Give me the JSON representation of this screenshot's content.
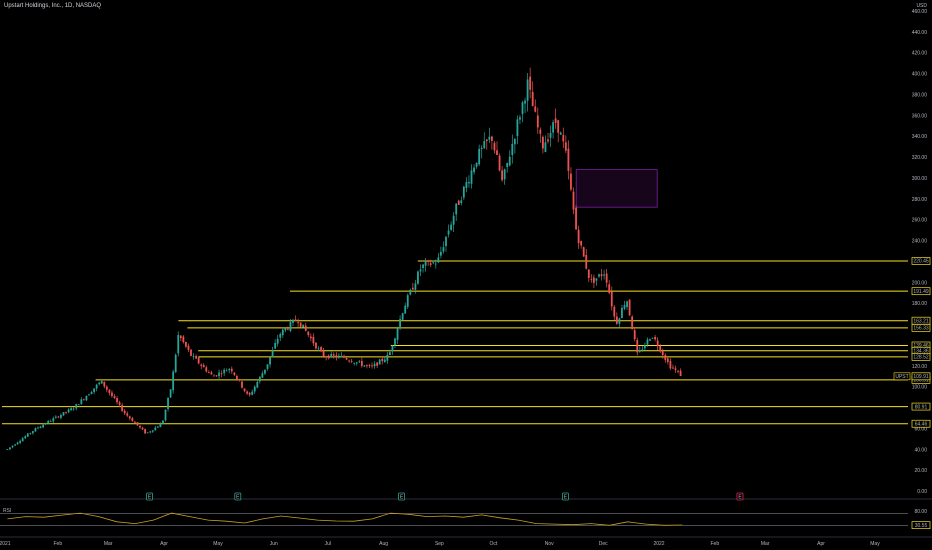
{
  "header": {
    "title": "Upstart Holdings, Inc., 1D, NASDAQ",
    "currency": "USD"
  },
  "rsi_label": "RSI",
  "colors": {
    "up": "#26a69a",
    "down": "#ef5350",
    "level": "#f5e11d",
    "rsi": "#c9a227",
    "zone": "#7b1fa2",
    "background": "#000000"
  },
  "chart_data": [
    {
      "type": "candlestick",
      "title": "Upstart Holdings, Inc., 1D, NASDAQ",
      "ylabel": "USD",
      "ylim": [
        0,
        460
      ],
      "y_ticks": [
        0,
        20,
        40,
        60,
        80,
        100,
        120,
        140,
        160,
        180,
        200,
        220,
        240,
        260,
        280,
        300,
        320,
        340,
        360,
        380,
        400,
        420,
        440,
        460
      ],
      "x_ticks": [
        "2021",
        "Feb",
        "Mar",
        "Apr",
        "May",
        "Jun",
        "Jul",
        "Aug",
        "Sep",
        "Oct",
        "Nov",
        "Dec",
        "2022",
        "Feb",
        "Mar",
        "Apr",
        "May"
      ],
      "price_path": [
        {
          "date": "2021-01-04",
          "price": 40
        },
        {
          "date": "2021-01-20",
          "price": 60
        },
        {
          "date": "2021-02-10",
          "price": 80
        },
        {
          "date": "2021-02-25",
          "price": 105
        },
        {
          "date": "2021-03-10",
          "price": 75
        },
        {
          "date": "2021-03-22",
          "price": 55
        },
        {
          "date": "2021-03-31",
          "price": 65
        },
        {
          "date": "2021-04-05",
          "price": 100
        },
        {
          "date": "2021-04-09",
          "price": 150
        },
        {
          "date": "2021-04-16",
          "price": 130
        },
        {
          "date": "2021-04-28",
          "price": 110
        },
        {
          "date": "2021-05-08",
          "price": 118
        },
        {
          "date": "2021-05-18",
          "price": 90
        },
        {
          "date": "2021-05-28",
          "price": 120
        },
        {
          "date": "2021-06-04",
          "price": 150
        },
        {
          "date": "2021-06-14",
          "price": 165
        },
        {
          "date": "2021-06-28",
          "price": 130
        },
        {
          "date": "2021-07-10",
          "price": 128
        },
        {
          "date": "2021-07-25",
          "price": 118
        },
        {
          "date": "2021-08-04",
          "price": 130
        },
        {
          "date": "2021-08-12",
          "price": 175
        },
        {
          "date": "2021-08-22",
          "price": 215
        },
        {
          "date": "2021-08-31",
          "price": 220
        },
        {
          "date": "2021-09-10",
          "price": 270
        },
        {
          "date": "2021-09-22",
          "price": 320
        },
        {
          "date": "2021-09-30",
          "price": 340
        },
        {
          "date": "2021-10-06",
          "price": 295
        },
        {
          "date": "2021-10-14",
          "price": 350
        },
        {
          "date": "2021-10-20",
          "price": 390
        },
        {
          "date": "2021-10-28",
          "price": 330
        },
        {
          "date": "2021-11-05",
          "price": 355
        },
        {
          "date": "2021-11-10",
          "price": 325
        },
        {
          "date": "2021-11-16",
          "price": 250
        },
        {
          "date": "2021-11-24",
          "price": 200
        },
        {
          "date": "2021-12-02",
          "price": 210
        },
        {
          "date": "2021-12-08",
          "price": 160
        },
        {
          "date": "2021-12-14",
          "price": 185
        },
        {
          "date": "2021-12-20",
          "price": 130
        },
        {
          "date": "2021-12-28",
          "price": 150
        },
        {
          "date": "2022-01-07",
          "price": 120
        },
        {
          "date": "2022-01-14",
          "price": 110
        }
      ],
      "levels": [
        220.45,
        191.49,
        163.21,
        156.33,
        139.46,
        134.36,
        128.52,
        106.51,
        80.91,
        64.46
      ],
      "last_price": {
        "label": "UPST",
        "value": 109.91
      },
      "zone": {
        "x_start": "2021-11-16",
        "x_end": "2021-12-31",
        "y_low": 272,
        "y_high": 308
      },
      "markers": [
        {
          "date": "2021-03-24",
          "kind": "E"
        },
        {
          "date": "2021-05-12",
          "kind": "E"
        },
        {
          "date": "2021-08-11",
          "kind": "E"
        },
        {
          "date": "2021-11-10",
          "kind": "E"
        },
        {
          "date": "2022-02-15",
          "kind": "E"
        }
      ]
    },
    {
      "type": "line",
      "title": "RSI",
      "ylim": [
        0,
        100
      ],
      "y_ticks": [
        80,
        30.55
      ],
      "bands": [
        30,
        70
      ],
      "current": 30.55,
      "series": [
        {
          "values": [
            52,
            60,
            58,
            65,
            72,
            60,
            42,
            36,
            48,
            72,
            60,
            48,
            44,
            38,
            52,
            62,
            55,
            48,
            45,
            44,
            52,
            72,
            68,
            60,
            62,
            58,
            66,
            56,
            48,
            36,
            34,
            32,
            36,
            30,
            42,
            34,
            30,
            31
          ]
        }
      ]
    }
  ]
}
